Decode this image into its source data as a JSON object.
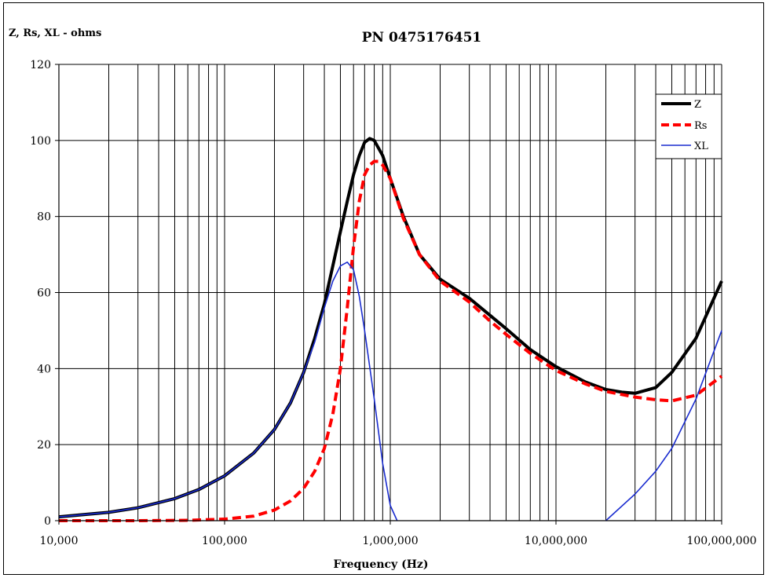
{
  "chart_data": {
    "type": "line",
    "title": "PN 0475176451",
    "ylabel": "Z, Rs, XL - ohms",
    "xlabel": "Frequency (Hz)",
    "x_scale": "log",
    "xlim": [
      10000,
      100000000
    ],
    "ylim": [
      0,
      120
    ],
    "y_ticks": [
      0,
      20,
      40,
      60,
      80,
      100,
      120
    ],
    "x_ticks": [
      10000,
      100000,
      1000000,
      10000000,
      100000000
    ],
    "x_tick_labels": [
      "10,000",
      "100,000",
      "1,000,000",
      "10,000,000",
      "100,000,000"
    ],
    "y_tick_labels": [
      "0",
      "20",
      "40",
      "60",
      "80",
      "100",
      "120"
    ],
    "grid": true,
    "legend_position": "top-right",
    "series": [
      {
        "name": "Z",
        "color": "#000000",
        "style": "solid-thick",
        "x": [
          10000,
          20000,
          30000,
          50000,
          70000,
          100000,
          150000,
          200000,
          250000,
          300000,
          350000,
          400000,
          450000,
          500000,
          550000,
          600000,
          650000,
          700000,
          750000,
          800000,
          900000,
          1000000,
          1200000,
          1500000,
          2000000,
          3000000,
          4000000,
          5000000,
          7000000,
          10000000,
          15000000,
          20000000,
          25000000,
          30000000,
          40000000,
          50000000,
          70000000,
          100000000
        ],
        "y": [
          1,
          2.2,
          3.4,
          5.8,
          8.2,
          11.8,
          17.8,
          24,
          31,
          39,
          48,
          57,
          67,
          76,
          84,
          91,
          96,
          99.5,
          100.5,
          100,
          96,
          90,
          80,
          70,
          63.5,
          58.5,
          54,
          50.5,
          45,
          40.5,
          36.5,
          34.5,
          33.8,
          33.5,
          35,
          39,
          48,
          63
        ]
      },
      {
        "name": "Rs",
        "color": "#ff0000",
        "style": "dashed-thick",
        "x": [
          10000,
          30000,
          60000,
          100000,
          150000,
          200000,
          250000,
          300000,
          350000,
          400000,
          450000,
          500000,
          550000,
          600000,
          650000,
          700000,
          750000,
          800000,
          850000,
          900000,
          1000000,
          1200000,
          1500000,
          2000000,
          3000000,
          4000000,
          5000000,
          7000000,
          10000000,
          15000000,
          20000000,
          30000000,
          40000000,
          50000000,
          70000000,
          100000000
        ],
        "y": [
          0,
          0,
          0.1,
          0.4,
          1.2,
          2.8,
          5.2,
          8.5,
          13,
          19,
          28,
          40,
          56,
          72,
          84,
          91,
          93.5,
          94.5,
          94.5,
          93.5,
          90,
          79.5,
          70,
          63,
          57.5,
          52.5,
          49,
          44,
          39.5,
          36,
          34,
          32.5,
          31.8,
          31.5,
          33,
          38
        ]
      },
      {
        "name": "XL",
        "color": "#1a2ccf",
        "style": "solid-thin",
        "x": [
          10000,
          20000,
          30000,
          50000,
          70000,
          100000,
          150000,
          200000,
          250000,
          300000,
          350000,
          400000,
          450000,
          500000,
          550000,
          600000,
          650000,
          700000,
          800000,
          900000,
          1000000,
          1100000
        ],
        "y": [
          1,
          2.2,
          3.4,
          5.8,
          8.2,
          11.8,
          17.8,
          24,
          31,
          39,
          47,
          56,
          63,
          67,
          68,
          66,
          59,
          50,
          32,
          15,
          4,
          0
        ],
        "x2": [
          20000000,
          30000000,
          40000000,
          50000000,
          70000000,
          100000000
        ],
        "y2": [
          0,
          7,
          13,
          19,
          32,
          50
        ]
      }
    ]
  }
}
